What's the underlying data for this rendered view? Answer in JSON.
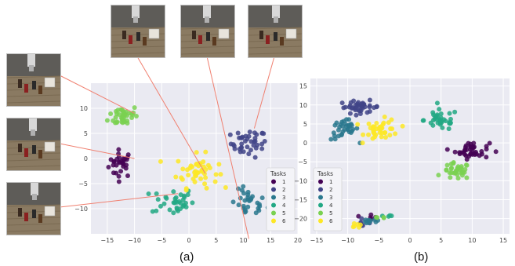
{
  "figure": {
    "captions": [
      "(a)",
      "(b)"
    ],
    "legend_title": "Tasks",
    "task_colors": [
      "#440154",
      "#414487",
      "#2a788e",
      "#22a884",
      "#7ad151",
      "#fde725"
    ],
    "thumbnail_subject": "robot-arm-tabletop-scene"
  },
  "chart_data": [
    {
      "type": "scatter",
      "title": "",
      "xlabel": "",
      "ylabel": "",
      "xlim": [
        -18,
        20
      ],
      "ylim": [
        -15,
        15
      ],
      "xticks": [
        -15,
        -10,
        -5,
        0,
        5,
        10,
        15,
        20
      ],
      "yticks": [
        10,
        5,
        0,
        -5,
        -10
      ],
      "grid": true,
      "legend": {
        "title": "Tasks",
        "placement": "lower-right",
        "entries": [
          "1",
          "2",
          "3",
          "4",
          "5",
          "6"
        ]
      },
      "series": [
        {
          "name": "1",
          "clusters": [
            {
              "cx": -12.5,
              "cy": -1,
              "sx": 2,
              "sy": 2.5,
              "n": 30
            }
          ]
        },
        {
          "name": "2",
          "clusters": [
            {
              "cx": 11,
              "cy": 3,
              "sx": 3,
              "sy": 2.5,
              "n": 40
            }
          ]
        },
        {
          "name": "3",
          "clusters": [
            {
              "cx": 11,
              "cy": -9,
              "sx": 3,
              "sy": 2.5,
              "n": 30
            }
          ]
        },
        {
          "name": "4",
          "clusters": [
            {
              "cx": -3,
              "cy": -8.5,
              "sx": 3.5,
              "sy": 2.5,
              "n": 35
            }
          ]
        },
        {
          "name": "5",
          "clusters": [
            {
              "cx": -12,
              "cy": 8.5,
              "sx": 2.5,
              "sy": 2,
              "n": 40
            }
          ]
        },
        {
          "name": "6",
          "clusters": [
            {
              "cx": 1.5,
              "cy": -2.5,
              "sx": 3.5,
              "sy": 3,
              "n": 45
            }
          ]
        }
      ],
      "annotations": [
        {
          "thumbnail": "left-top",
          "target": [
            -10,
            9
          ]
        },
        {
          "thumbnail": "left-middle",
          "target": [
            -10,
            0
          ]
        },
        {
          "thumbnail": "left-bottom",
          "target": [
            -2,
            -7
          ]
        },
        {
          "thumbnail": "top-left",
          "target": [
            3,
            -3
          ]
        },
        {
          "thumbnail": "top-middle",
          "target": [
            11,
            -16
          ]
        },
        {
          "thumbnail": "top-right",
          "target": [
            12,
            6
          ]
        }
      ]
    },
    {
      "type": "scatter",
      "title": "",
      "xlabel": "",
      "ylabel": "",
      "xlim": [
        -16,
        16
      ],
      "ylim": [
        -24,
        17
      ],
      "xticks": [
        -15,
        -10,
        -5,
        0,
        5,
        10,
        15
      ],
      "yticks": [
        15,
        10,
        5,
        0,
        -5,
        -10,
        -15,
        -20
      ],
      "grid": true,
      "legend": {
        "title": "Tasks",
        "placement": "lower-left",
        "entries": [
          "1",
          "2",
          "3",
          "4",
          "5",
          "6"
        ]
      },
      "series": [
        {
          "name": "1",
          "clusters": [
            {
              "cx": 10,
              "cy": -2,
              "sx": 2.5,
              "sy": 2,
              "n": 40
            },
            {
              "cx": -7,
              "cy": -20,
              "sx": 1.5,
              "sy": 0.8,
              "n": 6
            }
          ]
        },
        {
          "name": "2",
          "clusters": [
            {
              "cx": -8,
              "cy": 9.5,
              "sx": 3,
              "sy": 1.5,
              "n": 40
            },
            {
              "cx": -8,
              "cy": -21,
              "sx": 1.5,
              "sy": 0.8,
              "n": 6
            }
          ]
        },
        {
          "name": "3",
          "clusters": [
            {
              "cx": -10.5,
              "cy": 3.5,
              "sx": 2,
              "sy": 2.5,
              "n": 35
            },
            {
              "cx": -6.5,
              "cy": -20.5,
              "sx": 2,
              "sy": 1,
              "n": 10
            }
          ]
        },
        {
          "name": "4",
          "clusters": [
            {
              "cx": 5,
              "cy": 6,
              "sx": 2.5,
              "sy": 2.5,
              "n": 35
            },
            {
              "cx": -4,
              "cy": -19.5,
              "sx": 1.2,
              "sy": 0.5,
              "n": 4
            }
          ]
        },
        {
          "name": "5",
          "clusters": [
            {
              "cx": 7.5,
              "cy": -7.5,
              "sx": 2,
              "sy": 2,
              "n": 35
            },
            {
              "cx": -5,
              "cy": -20,
              "sx": 1.5,
              "sy": 0.5,
              "n": 4
            }
          ]
        },
        {
          "name": "6",
          "clusters": [
            {
              "cx": -4.5,
              "cy": 3.5,
              "sx": 2.5,
              "sy": 2.5,
              "n": 40
            },
            {
              "cx": -9,
              "cy": -21.5,
              "sx": 1.5,
              "sy": 0.8,
              "n": 6
            }
          ]
        }
      ]
    }
  ]
}
